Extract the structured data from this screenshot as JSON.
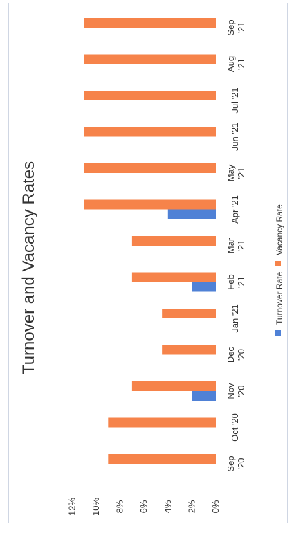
{
  "chart_data": {
    "type": "bar",
    "orientation": "rotated-90-ccw",
    "title": "Turnover and Vacancy Rates",
    "categories": [
      [
        "Sep",
        "'20"
      ],
      [
        "Oct '20"
      ],
      [
        "Nov",
        "'20"
      ],
      [
        "Dec",
        "'20"
      ],
      [
        "Jan '21"
      ],
      [
        "Feb",
        "'21"
      ],
      [
        "Mar",
        "'21"
      ],
      [
        "Apr '21"
      ],
      [
        "May",
        "'21"
      ],
      [
        "Jun '21"
      ],
      [
        "Jul '21"
      ],
      [
        "Aug",
        "'21"
      ],
      [
        "Sep",
        "'21"
      ]
    ],
    "series": [
      {
        "name": "Turnover Rate",
        "color": "#4f81d6",
        "values": [
          0,
          0,
          2,
          0,
          0,
          2,
          0,
          4,
          0,
          0,
          0,
          0,
          0
        ]
      },
      {
        "name": "Vacancy Rate",
        "color": "#f6834a",
        "values": [
          9,
          9,
          7,
          4.5,
          4.5,
          7,
          7,
          11,
          11,
          11,
          11,
          11,
          11
        ]
      }
    ],
    "ylim": [
      0,
      12
    ],
    "ticks": [
      "0%",
      "2%",
      "4%",
      "6%",
      "8%",
      "10%",
      "12%"
    ],
    "tick_values": [
      0,
      2,
      4,
      6,
      8,
      10,
      12
    ],
    "legend_position": "bottom",
    "grid": false
  }
}
